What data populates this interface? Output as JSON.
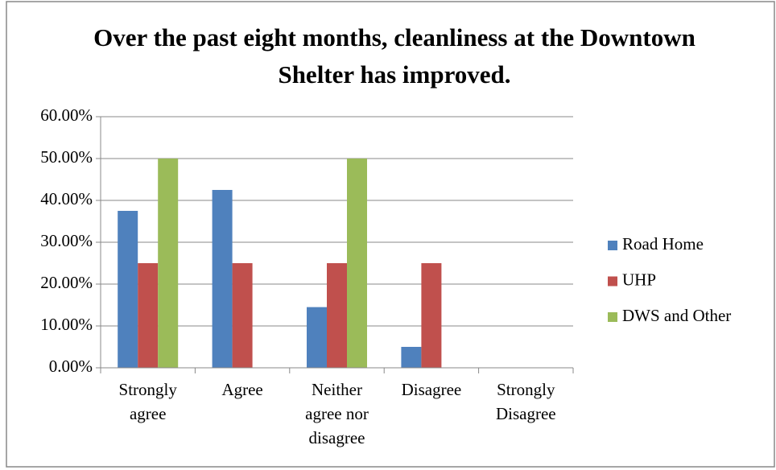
{
  "chart_data": {
    "type": "bar",
    "title": "Over the past eight months, cleanliness at the Downtown Shelter has improved.",
    "categories": [
      "Strongly agree",
      "Agree",
      "Neither agree nor disagree",
      "Disagree",
      "Strongly Disagree"
    ],
    "series": [
      {
        "name": "Road Home",
        "color": "#4f81bd",
        "values": [
          37.5,
          42.5,
          14.5,
          5,
          0
        ]
      },
      {
        "name": "UHP",
        "color": "#c0504d",
        "values": [
          25,
          25,
          25,
          25,
          0
        ]
      },
      {
        "name": "DWS and Other",
        "color": "#9bbb59",
        "values": [
          50,
          0,
          50,
          0,
          0
        ]
      }
    ],
    "ylim": [
      0,
      60
    ],
    "yticks": [
      {
        "value": 0,
        "label": "0.00%"
      },
      {
        "value": 10,
        "label": "10.00%"
      },
      {
        "value": 20,
        "label": "20.00%"
      },
      {
        "value": 30,
        "label": "30.00%"
      },
      {
        "value": 40,
        "label": "40.00%"
      },
      {
        "value": 50,
        "label": "50.00%"
      },
      {
        "value": 60,
        "label": "60.00%"
      }
    ],
    "grid": true,
    "legend": "right"
  }
}
